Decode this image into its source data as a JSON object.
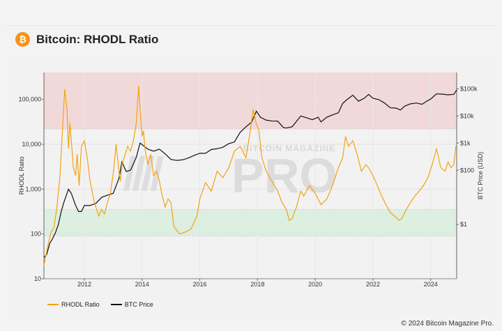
{
  "header": {
    "title": "Bitcoin: RHODL Ratio",
    "logo_glyph": "₿"
  },
  "footer": {
    "copyright": "© 2024 Bitcoin Magazine Pro."
  },
  "watermark": {
    "top": "BITCOIN MAGAZINE",
    "main": "PRO"
  },
  "colors": {
    "rhodl": "#f5a20f",
    "price": "#111111",
    "upper_band": "#f1d9d9",
    "lower_band": "#dcefe1",
    "brand": "#f7931a"
  },
  "chart_data": {
    "type": "line",
    "title": "Bitcoin: RHODL Ratio",
    "ylabel": "RHODL Ratio",
    "y2label": "BTC Price (USD)",
    "xlabel": "",
    "xlim": [
      2010.6,
      2024.9
    ],
    "ylim": [
      10,
      400000
    ],
    "y2lim": [
      0.01,
      400000
    ],
    "x_ticks": [
      "2012",
      "2014",
      "2016",
      "2018",
      "2020",
      "2022",
      "2024"
    ],
    "y_ticks": [
      "10",
      "100",
      "1,000",
      "10,000",
      "100,000"
    ],
    "y2_ticks": [
      "$1",
      "$100",
      "$1k",
      "$10k",
      "$100k"
    ],
    "grid": true,
    "legend_position": "bottom-left",
    "bands": [
      {
        "name": "upper_band",
        "from": 22000,
        "to": 400000
      },
      {
        "name": "lower_band",
        "from": 90,
        "to": 350
      }
    ],
    "series": [
      {
        "name": "RHODL Ratio",
        "axis": "left",
        "x": [
          2010.6,
          2010.75,
          2010.85,
          2010.95,
          2011.05,
          2011.15,
          2011.25,
          2011.32,
          2011.4,
          2011.45,
          2011.5,
          2011.55,
          2011.62,
          2011.7,
          2011.75,
          2011.82,
          2011.9,
          2012.0,
          2012.1,
          2012.2,
          2012.35,
          2012.5,
          2012.6,
          2012.7,
          2012.8,
          2012.9,
          2013.0,
          2013.1,
          2013.2,
          2013.25,
          2013.3,
          2013.4,
          2013.5,
          2013.6,
          2013.7,
          2013.8,
          2013.88,
          2013.93,
          2014.0,
          2014.05,
          2014.1,
          2014.2,
          2014.3,
          2014.4,
          2014.5,
          2014.6,
          2014.7,
          2014.8,
          2014.9,
          2015.0,
          2015.1,
          2015.2,
          2015.3,
          2015.5,
          2015.7,
          2015.9,
          2016.0,
          2016.2,
          2016.4,
          2016.6,
          2016.8,
          2017.0,
          2017.2,
          2017.4,
          2017.6,
          2017.75,
          2017.85,
          2017.95,
          2018.05,
          2018.15,
          2018.3,
          2018.5,
          2018.7,
          2018.85,
          2019.0,
          2019.1,
          2019.2,
          2019.35,
          2019.5,
          2019.6,
          2019.8,
          2020.0,
          2020.2,
          2020.4,
          2020.6,
          2020.8,
          2020.95,
          2021.05,
          2021.15,
          2021.3,
          2021.45,
          2021.6,
          2021.75,
          2021.85,
          2022.0,
          2022.15,
          2022.3,
          2022.45,
          2022.6,
          2022.75,
          2022.9,
          2023.0,
          2023.15,
          2023.3,
          2023.45,
          2023.6,
          2023.75,
          2023.9,
          2024.05,
          2024.2,
          2024.35,
          2024.5,
          2024.6,
          2024.7,
          2024.8,
          2024.87
        ],
        "y": [
          20,
          60,
          110,
          140,
          400,
          1800,
          25000,
          170000,
          60000,
          8000,
          30000,
          12000,
          3000,
          2000,
          6000,
          1200,
          9000,
          12000,
          5000,
          1500,
          500,
          250,
          350,
          280,
          500,
          800,
          2200,
          10000,
          2500,
          1500,
          3500,
          5500,
          9000,
          7000,
          12000,
          30000,
          200000,
          60000,
          15000,
          20000,
          8000,
          3500,
          6000,
          2000,
          2500,
          1500,
          700,
          400,
          600,
          500,
          150,
          120,
          100,
          110,
          130,
          250,
          600,
          1400,
          900,
          2500,
          1800,
          3000,
          7000,
          9000,
          5000,
          20000,
          60000,
          30000,
          20000,
          5000,
          2500,
          1500,
          900,
          500,
          350,
          200,
          220,
          400,
          900,
          700,
          1200,
          800,
          450,
          600,
          1200,
          3000,
          5000,
          15000,
          9000,
          12000,
          6000,
          2500,
          3500,
          3000,
          2000,
          1200,
          700,
          450,
          300,
          250,
          200,
          220,
          350,
          500,
          700,
          900,
          1200,
          1800,
          3500,
          8000,
          3000,
          2500,
          4000,
          3000,
          3500,
          9000
        ]
      },
      {
        "name": "BTC Price",
        "axis": "right",
        "x": [
          2010.6,
          2010.7,
          2010.8,
          2010.9,
          2011.0,
          2011.1,
          2011.2,
          2011.3,
          2011.45,
          2011.55,
          2011.7,
          2011.8,
          2011.9,
          2012.0,
          2012.2,
          2012.4,
          2012.6,
          2012.8,
          2013.0,
          2013.2,
          2013.3,
          2013.45,
          2013.6,
          2013.8,
          2013.93,
          2014.05,
          2014.2,
          2014.4,
          2014.6,
          2014.8,
          2015.0,
          2015.2,
          2015.4,
          2015.6,
          2015.8,
          2016.0,
          2016.2,
          2016.4,
          2016.6,
          2016.8,
          2017.0,
          2017.2,
          2017.4,
          2017.6,
          2017.8,
          2017.96,
          2018.1,
          2018.3,
          2018.5,
          2018.7,
          2018.9,
          2019.0,
          2019.2,
          2019.5,
          2019.7,
          2019.9,
          2020.1,
          2020.2,
          2020.4,
          2020.6,
          2020.8,
          2020.95,
          2021.1,
          2021.3,
          2021.5,
          2021.7,
          2021.85,
          2022.0,
          2022.2,
          2022.4,
          2022.6,
          2022.8,
          2022.95,
          2023.1,
          2023.3,
          2023.5,
          2023.7,
          2023.9,
          2024.0,
          2024.2,
          2024.4,
          2024.6,
          2024.8,
          2024.9
        ],
        "y": [
          0.06,
          0.08,
          0.2,
          0.3,
          0.5,
          1,
          3,
          7,
          20,
          14,
          5,
          3,
          3,
          5,
          5,
          6,
          10,
          12,
          14,
          50,
          200,
          90,
          100,
          300,
          1000,
          800,
          600,
          500,
          600,
          400,
          250,
          230,
          240,
          280,
          350,
          420,
          420,
          580,
          620,
          700,
          950,
          1100,
          2500,
          4000,
          6000,
          15000,
          9000,
          7000,
          6500,
          6400,
          3700,
          3600,
          4000,
          10000,
          8500,
          7300,
          9000,
          6000,
          9000,
          11000,
          13000,
          29000,
          40000,
          58000,
          35000,
          45000,
          62000,
          45000,
          40000,
          30000,
          20000,
          19500,
          16500,
          23000,
          28000,
          30000,
          27000,
          37000,
          42000,
          65000,
          64000,
          60000,
          63000,
          90000
        ]
      }
    ]
  }
}
